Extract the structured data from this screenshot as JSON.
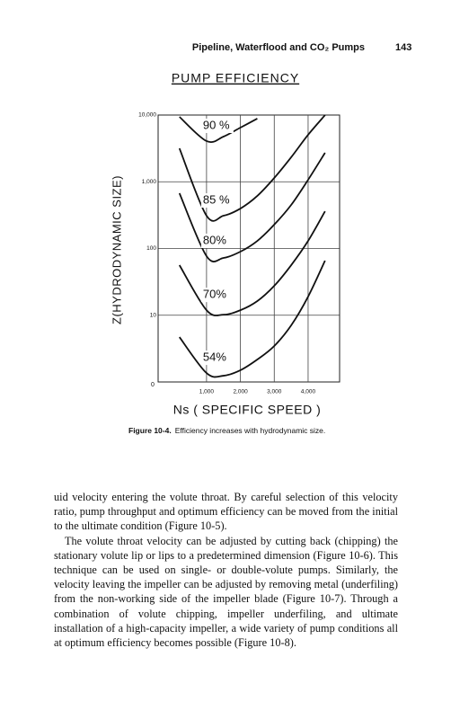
{
  "header": {
    "running_title": "Pipeline, Waterflood and CO₂ Pumps",
    "page_number": "143"
  },
  "chart_data": {
    "type": "line",
    "title": "PUMP EFFICIENCY",
    "x_label": "Ns ( SPECIFIC SPEED )",
    "y_label": "Z(HYDRODYNAMIC SIZE)",
    "origin_label": "0",
    "x": [
      200,
      1000,
      1500,
      2000,
      2500,
      3000,
      3500,
      4000,
      4500
    ],
    "series": [
      {
        "name": "90 %",
        "color": "#111111",
        "values": [
          9400,
          4070,
          4750,
          6480,
          8840,
          null,
          null,
          null,
          null
        ]
      },
      {
        "name": "85 %",
        "color": "#111111",
        "values": [
          3170,
          310,
          310,
          397,
          614,
          1140,
          2330,
          5060,
          9970
        ]
      },
      {
        "name": "80%",
        "color": "#111111",
        "values": [
          673,
          76.9,
          72.2,
          89.7,
          130,
          228,
          450,
          1070,
          2720
        ]
      },
      {
        "name": "70%",
        "color": "#111111",
        "values": [
          56.3,
          11.9,
          10.2,
          11.9,
          16.3,
          27.6,
          56.3,
          130,
          362
        ]
      },
      {
        "name": "54%",
        "color": "#111111",
        "values": [
          4.7,
          1.36,
          1.24,
          1.5,
          2.17,
          3.46,
          7.05,
          19,
          65.8
        ]
      }
    ],
    "xlim": [
      -430,
      4930
    ],
    "xticks": [
      {
        "value": 1000,
        "label": "1,000"
      },
      {
        "value": 2000,
        "label": "2,000"
      },
      {
        "value": 3000,
        "label": "3,000"
      },
      {
        "value": 4000,
        "label": "4,000"
      }
    ],
    "ylim": [
      1,
      10000
    ],
    "ylog": true,
    "yticks": [
      10,
      100,
      {
        "value": 1000,
        "label": "1,000"
      },
      {
        "value": 10000,
        "label": "10,000"
      }
    ],
    "grid": true
  },
  "caption": {
    "label": "Figure 10-4.",
    "text": "Efficiency increases with hydrodynamic size."
  },
  "body": {
    "paragraphs": [
      "uid velocity entering the volute throat. By careful selection of this velocity ratio, pump throughput and optimum efficiency can be moved from the initial to the ultimate condition (Figure 10-5).",
      "The volute throat velocity can be adjusted by cutting back (chipping) the stationary volute lip or lips to a predetermined dimension (Figure 10-6). This technique can be used on single- or double-volute pumps. Similarly, the velocity leaving the impeller can be adjusted by removing metal (underfiling) from the non-working side of the impeller blade (Figure 10-7). Through a combination of volute chipping, impeller underfiling, and ultimate installation of a high-capacity impeller, a wide variety of pump conditions all at optimum efficiency becomes possible (Figure 10-8)."
    ]
  }
}
